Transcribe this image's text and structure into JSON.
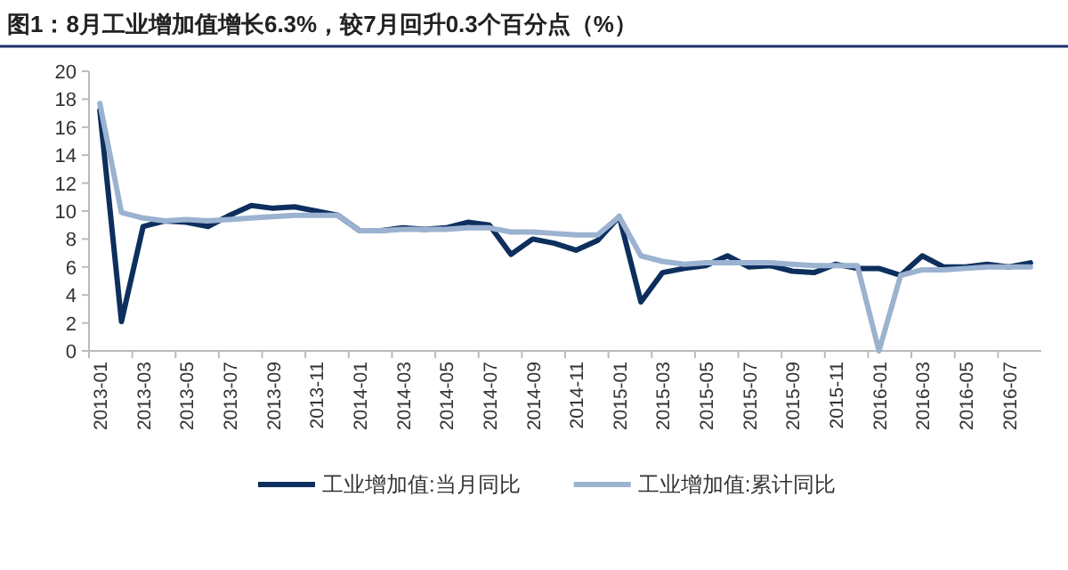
{
  "chart_data": {
    "type": "line",
    "title": "图1：8月工业增加值增长6.3%，较7月回升0.3个百分点（%）",
    "categories": [
      "2013-01",
      null,
      "2013-03",
      null,
      "2013-05",
      null,
      "2013-07",
      null,
      "2013-09",
      null,
      "2013-11",
      null,
      "2014-01",
      null,
      "2014-03",
      null,
      "2014-05",
      null,
      "2014-07",
      null,
      "2014-09",
      null,
      "2014-11",
      null,
      "2015-01",
      null,
      "2015-03",
      null,
      "2015-05",
      null,
      "2015-07",
      null,
      "2015-09",
      null,
      "2015-11",
      null,
      "2016-01",
      null,
      "2016-03",
      null,
      "2016-05",
      null,
      "2016-07",
      null
    ],
    "series": [
      {
        "name": "工业增加值:当月同比",
        "color": "#0d2f5e",
        "values": [
          17.2,
          2.1,
          8.9,
          9.3,
          9.2,
          8.9,
          9.7,
          10.4,
          10.2,
          10.3,
          10.0,
          9.7,
          8.6,
          8.6,
          8.8,
          8.7,
          8.8,
          9.2,
          9.0,
          6.9,
          8.0,
          7.7,
          7.2,
          7.9,
          9.6,
          3.5,
          5.6,
          5.9,
          6.1,
          6.8,
          6.0,
          6.1,
          5.7,
          5.6,
          6.2,
          5.9,
          5.9,
          5.4,
          6.8,
          6.0,
          6.0,
          6.2,
          6.0,
          6.3
        ]
      },
      {
        "name": "工业增加值:累计同比",
        "color": "#9bb2d1",
        "values": [
          17.7,
          9.9,
          9.5,
          9.3,
          9.4,
          9.3,
          9.4,
          9.5,
          9.6,
          9.7,
          9.7,
          9.7,
          8.6,
          8.6,
          8.7,
          8.7,
          8.7,
          8.8,
          8.8,
          8.5,
          8.5,
          8.4,
          8.3,
          8.3,
          9.6,
          6.8,
          6.4,
          6.2,
          6.3,
          6.3,
          6.3,
          6.3,
          6.2,
          6.1,
          6.1,
          6.1,
          0,
          5.4,
          5.8,
          5.8,
          5.9,
          6.0,
          6.0,
          6.0
        ]
      }
    ],
    "ylim": [
      0,
      20
    ],
    "yticks": [
      0,
      2,
      4,
      6,
      8,
      10,
      12,
      14,
      16,
      18,
      20
    ],
    "grid": false,
    "legend": "bottom",
    "marker": "none",
    "line_style": "solid"
  }
}
